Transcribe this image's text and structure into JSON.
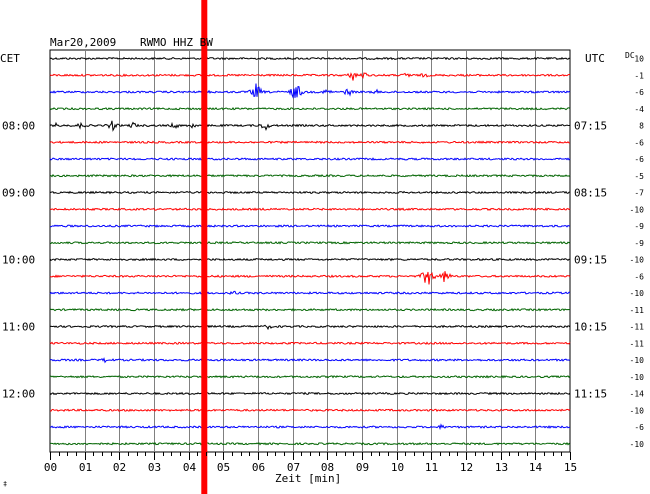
{
  "header": {
    "date": "Mar20,2009",
    "station": "RWMO HHZ BW"
  },
  "left_label": "CET",
  "right_label": "UTC",
  "dc_label": "DC",
  "xlabel": "Zeit [min]",
  "corner_mark": "‡",
  "colors": {
    "black": "#000000",
    "red": "#ff0000",
    "blue": "#0000ff",
    "green": "#006400",
    "marker": "#ff0000",
    "grid": "#808080"
  },
  "chart_data": {
    "type": "line",
    "x_range": [
      0,
      15
    ],
    "x_ticks": [
      "00",
      "01",
      "02",
      "03",
      "04",
      "05",
      "06",
      "07",
      "08",
      "09",
      "10",
      "11",
      "12",
      "13",
      "14",
      "15"
    ],
    "marker_minute": 4.45,
    "trace_colors": [
      "black",
      "red",
      "blue",
      "green"
    ],
    "hour_labels_left": [
      {
        "trace": 4,
        "label": "08:00"
      },
      {
        "trace": 8,
        "label": "09:00"
      },
      {
        "trace": 12,
        "label": "10:00"
      },
      {
        "trace": 16,
        "label": "11:00"
      },
      {
        "trace": 20,
        "label": "12:00"
      }
    ],
    "hour_labels_right": [
      {
        "trace": 4,
        "label": "07:15"
      },
      {
        "trace": 8,
        "label": "08:15"
      },
      {
        "trace": 12,
        "label": "09:15"
      },
      {
        "trace": 16,
        "label": "10:15"
      },
      {
        "trace": 20,
        "label": "11:15"
      }
    ],
    "dc_values": [
      "10",
      "-1",
      "-6",
      "-4",
      "8",
      "-6",
      "-6",
      "-5",
      "-7",
      "-10",
      "-9",
      "-9",
      "-10",
      "-6",
      "-10",
      "-11",
      "-11",
      "-11",
      "-10",
      "-10",
      "-14",
      "-10",
      "-6",
      "-10"
    ],
    "events": [
      {
        "trace": 1,
        "minute": 8.75,
        "amp": 6
      },
      {
        "trace": 1,
        "minute": 9.05,
        "amp": 4
      },
      {
        "trace": 1,
        "minute": 10.3,
        "amp": 4
      },
      {
        "trace": 1,
        "minute": 10.8,
        "amp": 3
      },
      {
        "trace": 2,
        "minute": 4.5,
        "amp": 3
      },
      {
        "trace": 2,
        "minute": 5.95,
        "amp": 10
      },
      {
        "trace": 2,
        "minute": 7.1,
        "amp": 12
      },
      {
        "trace": 2,
        "minute": 8.0,
        "amp": 4
      },
      {
        "trace": 2,
        "minute": 8.6,
        "amp": 5
      },
      {
        "trace": 2,
        "minute": 9.4,
        "amp": 3
      },
      {
        "trace": 4,
        "minute": 0.2,
        "amp": 3
      },
      {
        "trace": 4,
        "minute": 0.9,
        "amp": 4
      },
      {
        "trace": 4,
        "minute": 1.8,
        "amp": 6
      },
      {
        "trace": 4,
        "minute": 2.4,
        "amp": 4
      },
      {
        "trace": 4,
        "minute": 3.6,
        "amp": 4
      },
      {
        "trace": 4,
        "minute": 4.1,
        "amp": 4
      },
      {
        "trace": 4,
        "minute": 6.2,
        "amp": 6
      },
      {
        "trace": 13,
        "minute": 10.9,
        "amp": 14
      },
      {
        "trace": 13,
        "minute": 11.4,
        "amp": 8
      },
      {
        "trace": 14,
        "minute": 5.3,
        "amp": 3
      },
      {
        "trace": 16,
        "minute": 6.3,
        "amp": 3
      },
      {
        "trace": 18,
        "minute": 1.6,
        "amp": 3
      },
      {
        "trace": 22,
        "minute": 11.3,
        "amp": 3
      }
    ]
  }
}
